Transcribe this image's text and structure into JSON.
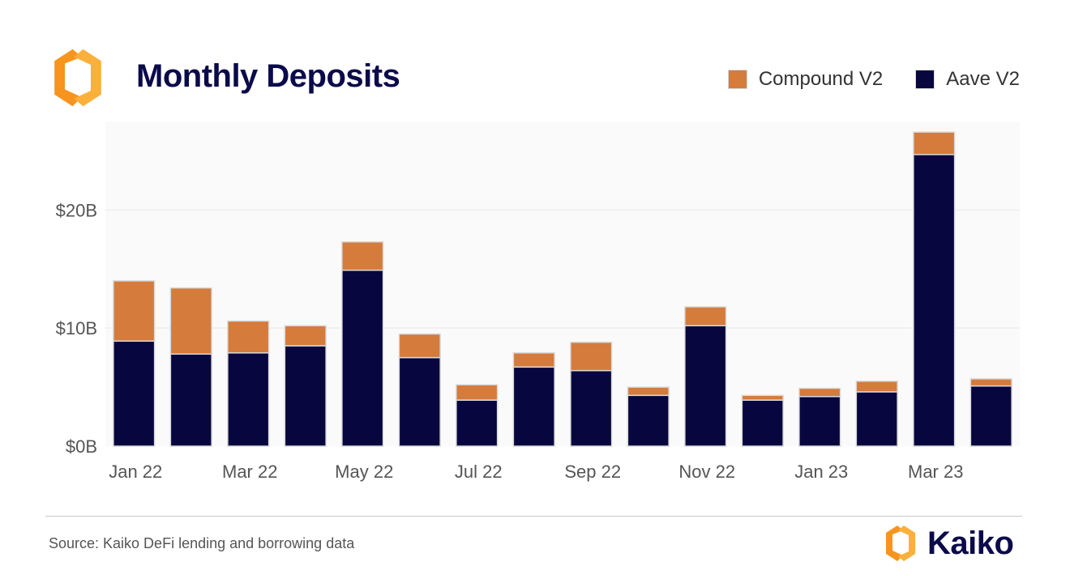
{
  "header": {
    "title": "Monthly Deposits"
  },
  "legend": [
    {
      "label": "Compound V2",
      "color": "#d57b3c"
    },
    {
      "label": "Aave V2",
      "color": "#07063f"
    }
  ],
  "footer": {
    "source": "Source: Kaiko DeFi lending and borrowing data",
    "brand": "Kaiko"
  },
  "colors": {
    "accent_orange": "#f7941d",
    "accent_yellow": "#fbb03b",
    "navy": "#0b0a4a",
    "grid": "#eeeeee",
    "plot_background": "#fafafa"
  },
  "chart_data": {
    "type": "bar",
    "stacked": true,
    "categories": [
      "Jan 22",
      "Feb 22",
      "Mar 22",
      "Apr 22",
      "May 22",
      "Jun 22",
      "Jul 22",
      "Aug 22",
      "Sep 22",
      "Oct 22",
      "Nov 22",
      "Dec 22",
      "Jan 23",
      "Feb 23",
      "Mar 23",
      "Apr 23"
    ],
    "x_tick_labels": [
      "Jan 22",
      "Mar 22",
      "May 22",
      "Jul 22",
      "Sep 22",
      "Nov 22",
      "Jan 23",
      "Mar 23"
    ],
    "series": [
      {
        "name": "Aave V2",
        "color": "#07063f",
        "values": [
          8.9,
          7.8,
          7.9,
          8.5,
          14.9,
          7.5,
          3.9,
          6.7,
          6.4,
          4.3,
          10.2,
          3.9,
          4.2,
          4.6,
          24.7,
          5.1
        ]
      },
      {
        "name": "Compound V2",
        "color": "#d57b3c",
        "values": [
          5.1,
          5.6,
          2.7,
          1.7,
          2.4,
          2.0,
          1.3,
          1.2,
          2.4,
          0.7,
          1.6,
          0.4,
          0.7,
          0.9,
          1.9,
          0.6
        ]
      }
    ],
    "y_ticks": [
      0,
      10,
      20
    ],
    "y_tick_labels": [
      "$0B",
      "$10B",
      "$20B"
    ],
    "ylim": [
      0,
      27.5
    ],
    "grid": true
  }
}
